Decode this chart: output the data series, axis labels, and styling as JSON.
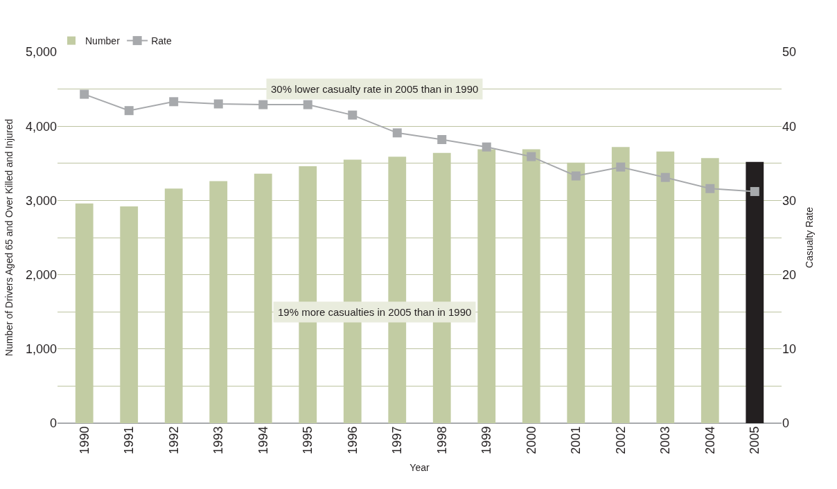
{
  "chart_data": {
    "type": "bar",
    "xlabel": "Year",
    "ylabel": "Number of Drivers Aged 65 and Over Killed and Injured",
    "y2label": "Casualty Rate",
    "categories": [
      "1990",
      "1991",
      "1992",
      "1993",
      "1994",
      "1995",
      "1996",
      "1997",
      "1998",
      "1999",
      "2000",
      "2001",
      "2002",
      "2003",
      "2004",
      "2005"
    ],
    "series": [
      {
        "name": "Number",
        "color": "#c2cca3",
        "colors": [
          "#c2cca3",
          "#c2cca3",
          "#c2cca3",
          "#c2cca3",
          "#c2cca3",
          "#c2cca3",
          "#c2cca3",
          "#c2cca3",
          "#c2cca3",
          "#c2cca3",
          "#c2cca3",
          "#c2cca3",
          "#c2cca3",
          "#c2cca3",
          "#c2cca3",
          "#231f20"
        ],
        "values": [
          2960,
          2920,
          3160,
          3260,
          3360,
          3460,
          3550,
          3590,
          3640,
          3690,
          3690,
          3510,
          3720,
          3660,
          3570,
          3520
        ]
      },
      {
        "name": "Rate",
        "type": "line",
        "axis": "y2",
        "color": "#a7a9ac",
        "marker": "square",
        "values": [
          44.3,
          42.1,
          43.3,
          43.0,
          42.9,
          42.9,
          41.5,
          39.1,
          38.2,
          37.2,
          35.9,
          33.3,
          34.5,
          33.1,
          31.6,
          31.2
        ]
      }
    ],
    "ylim": [
      0,
      5000
    ],
    "yticks": [
      0,
      {
        "value": 500,
        "label": null
      },
      {
        "value": 1000,
        "label": "1,000"
      },
      {
        "value": 1500,
        "label": null
      },
      {
        "value": 2000,
        "label": "2,000"
      },
      {
        "value": 2500,
        "label": null
      },
      {
        "value": 3000,
        "label": "3,000"
      },
      {
        "value": 3500,
        "label": null
      },
      {
        "value": 4000,
        "label": "4,000"
      },
      {
        "value": 4500,
        "label": null
      },
      {
        "value": 5000,
        "label": "5,000"
      }
    ],
    "y2lim": [
      0,
      50
    ],
    "y2ticks": [
      0,
      10,
      20,
      30,
      40,
      50
    ],
    "grid": "y",
    "legend": "top left",
    "annotations": [
      "30% lower casualty rate in 2005 than in 1990",
      "19% more casualties in 2005 than in 1990"
    ]
  }
}
